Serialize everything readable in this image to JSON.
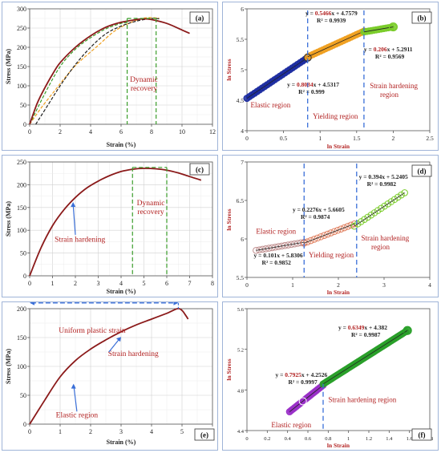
{
  "colors": {
    "curve": "#8b1a1a",
    "green_dash": "#3a9d2a",
    "blue_dash": "#3a6fd8",
    "orange": "#f0a020",
    "annot_red": "#b22222",
    "axis_label_red": "#b22222"
  },
  "chart_data": [
    {
      "id": "a",
      "type": "line",
      "panel_label": "(a)",
      "xlabel": "Strain (%)",
      "ylabel": "Stress (MPa)",
      "xlim": [
        0,
        12
      ],
      "ylim": [
        0,
        300
      ],
      "xticks": [
        "0",
        "2",
        "4",
        "6",
        "8",
        "10",
        "12"
      ],
      "yticks": [
        "0",
        "50",
        "100",
        "150",
        "200",
        "250",
        "300"
      ],
      "grid": true,
      "series": [
        {
          "style": "solid",
          "x": [
            0,
            0.5,
            1,
            1.5,
            2,
            3,
            4,
            5,
            6,
            7,
            7.5,
            8,
            9,
            10,
            10.5
          ],
          "y": [
            0,
            55,
            95,
            130,
            160,
            200,
            230,
            252,
            265,
            272,
            274,
            272,
            262,
            245,
            236
          ]
        },
        {
          "style": "dashed",
          "x": [
            0,
            0.8,
            1.6,
            2.4,
            3.2,
            4.5,
            5.5,
            6.5,
            7.5,
            8.5
          ],
          "y": [
            0,
            45,
            85,
            125,
            160,
            205,
            240,
            262,
            276,
            276
          ]
        },
        {
          "style": "dashed",
          "x": [
            0.4,
            1.2,
            2,
            3,
            4,
            5,
            6,
            7,
            8,
            8.5
          ],
          "y": [
            0,
            50,
            100,
            155,
            200,
            235,
            255,
            268,
            275,
            274
          ]
        },
        {
          "style": "dashed",
          "x": [
            0,
            1,
            2,
            3,
            4,
            5,
            6,
            6.5
          ],
          "y": [
            0,
            80,
            150,
            195,
            225,
            248,
            262,
            264
          ]
        }
      ],
      "vlines": [
        6.4,
        8.3
      ],
      "annotations": [
        "Dynamic",
        "recovery"
      ]
    },
    {
      "id": "b",
      "type": "scatter",
      "panel_label": "(b)",
      "xlabel": "ln Strain",
      "ylabel": "ln Stress",
      "xlim": [
        0,
        2.5
      ],
      "ylim": [
        4,
        6
      ],
      "xticks": [
        "0",
        "0.5",
        "1",
        "1.5",
        "2",
        "2.5"
      ],
      "yticks": [
        "4",
        "4.5",
        "5",
        "5.5",
        "6"
      ],
      "segments": [
        {
          "x_from": 0,
          "x_to": 0.83,
          "slope": 0.8034,
          "intercept": 4.5317,
          "color": "#1a2aa0"
        },
        {
          "x_from": 0.83,
          "x_to": 1.6,
          "slope": 0.5466,
          "intercept": 4.7579,
          "color": "#f0a020"
        },
        {
          "x_from": 1.6,
          "x_to": 2.0,
          "slope": 0.206,
          "intercept": 5.2911,
          "color": "#7acc2a"
        }
      ],
      "vlines": [
        0.83,
        1.6
      ],
      "equations": [
        {
          "text_pre": "y = ",
          "coef": "0.5466",
          "text_post": "x + 4.7579",
          "r2": "R² = 0.9939"
        },
        {
          "text_pre": "y = ",
          "coef": "0.206",
          "text_post": "x + 5.2911",
          "r2": "R² = 0.9569"
        },
        {
          "text_pre": "y = ",
          "coef": "0.8034",
          "text_post": "x + 4.5317",
          "r2": "R² = 0.999"
        }
      ],
      "regions": [
        "Elastic region",
        "Yielding  region",
        "Strain hardening",
        "region"
      ]
    },
    {
      "id": "c",
      "type": "line",
      "panel_label": "(c)",
      "xlabel": "Strain (%)",
      "ylabel": "Stress (MPa)",
      "xlim": [
        0,
        8
      ],
      "ylim": [
        0,
        250
      ],
      "xticks": [
        "0",
        "1",
        "2",
        "3",
        "4",
        "5",
        "6",
        "7",
        "8"
      ],
      "yticks": [
        "0",
        "50",
        "100",
        "150",
        "200",
        "250"
      ],
      "grid": true,
      "series": [
        {
          "style": "solid",
          "x": [
            0,
            0.5,
            1,
            1.5,
            2,
            2.5,
            3,
            3.5,
            4,
            4.5,
            5,
            5.5,
            6,
            6.5,
            7,
            7.5
          ],
          "y": [
            0,
            62,
            110,
            145,
            172,
            193,
            208,
            220,
            229,
            234,
            236,
            235,
            232,
            226,
            218,
            210
          ]
        }
      ],
      "vlines": [
        4.5,
        6.0
      ],
      "hline": 238,
      "annotations": [
        "Dynamic",
        "recovery",
        "Strain hardening"
      ]
    },
    {
      "id": "d",
      "type": "scatter",
      "panel_label": "(d)",
      "xlabel": "ln Strain",
      "ylabel": "ln Stress",
      "xlim": [
        0,
        4
      ],
      "ylim": [
        5.5,
        7
      ],
      "xticks": [
        "0",
        "1",
        "2",
        "3",
        "4"
      ],
      "yticks": [
        "5.5",
        "6",
        "6.5",
        "7"
      ],
      "segments": [
        {
          "x_from": 0.2,
          "x_to": 1.25,
          "slope": 0.101,
          "intercept": 5.8306,
          "color": "#c09090"
        },
        {
          "x_from": 1.25,
          "x_to": 2.35,
          "slope": 0.2276,
          "intercept": 5.6605,
          "color": "#e08060"
        },
        {
          "x_from": 2.35,
          "x_to": 3.45,
          "slope": 0.394,
          "intercept": 5.2405,
          "color": "#7acc2a"
        }
      ],
      "vlines": [
        1.25,
        2.4
      ],
      "equations": [
        {
          "text": "y = 0.394x + 5.2405",
          "r2": "R² = 0.9982"
        },
        {
          "text": "y = 0.2276x + 5.6605",
          "r2": "R² = 0.9874"
        },
        {
          "text": "y = 0.101x + 5.8306",
          "r2": "R² = 0.9852"
        }
      ],
      "regions": [
        "Elastic region",
        "Yielding  region",
        "Strain hardening",
        "region"
      ]
    },
    {
      "id": "e",
      "type": "line",
      "panel_label": "(e)",
      "xlabel": "Strain (%)",
      "ylabel": "Stress (MPa)",
      "xlim": [
        0,
        6
      ],
      "ylim": [
        0,
        200
      ],
      "xticks": [
        "0",
        "1",
        "2",
        "3",
        "4",
        "5",
        "6"
      ],
      "yticks": [
        "0",
        "50",
        "100",
        "150",
        "200"
      ],
      "grid": true,
      "series": [
        {
          "style": "solid",
          "x": [
            0,
            0.5,
            1,
            1.5,
            2,
            2.5,
            3,
            3.5,
            4,
            4.5,
            4.85,
            5,
            5.1,
            5.2
          ],
          "y": [
            0,
            42,
            82,
            110,
            130,
            146,
            160,
            172,
            182,
            192,
            200,
            197,
            190,
            182
          ]
        }
      ],
      "arrow_y": 210,
      "annotations": [
        "Uniform plastic strain",
        "Strain hardening",
        "Elastic region"
      ]
    },
    {
      "id": "f",
      "type": "scatter",
      "panel_label": "(f)",
      "xlabel": "ln Strain",
      "ylabel": "ln Stress",
      "xlim": [
        0,
        1.8
      ],
      "ylim": [
        4.4,
        5.6
      ],
      "xticks": [
        "0",
        "0.2",
        "0.4",
        "0.6",
        "0.8",
        "1",
        "1.2",
        "1.4",
        "1.6",
        "1.8"
      ],
      "yticks": [
        "4.4",
        "4.8",
        "5.2",
        "5.6"
      ],
      "segments": [
        {
          "x_from": 0.42,
          "x_to": 0.75,
          "slope": 0.7925,
          "intercept": 4.2526,
          "color": "#9a30c8"
        },
        {
          "x_from": 0.75,
          "x_to": 1.58,
          "slope": 0.6349,
          "intercept": 4.382,
          "color": "#2aa02a"
        }
      ],
      "vlines": [
        0.75
      ],
      "equations": [
        {
          "text_pre": "y = ",
          "coef": "0.6349",
          "text_post": "x + 4.382",
          "r2": "R² = 0.9987"
        },
        {
          "text_pre": "y = ",
          "coef": "0.7925",
          "text_post": "x + 4.2526",
          "r2": "R² = 0.9997"
        }
      ],
      "regions": [
        "Strain hardening region",
        "Elastic region"
      ]
    }
  ]
}
